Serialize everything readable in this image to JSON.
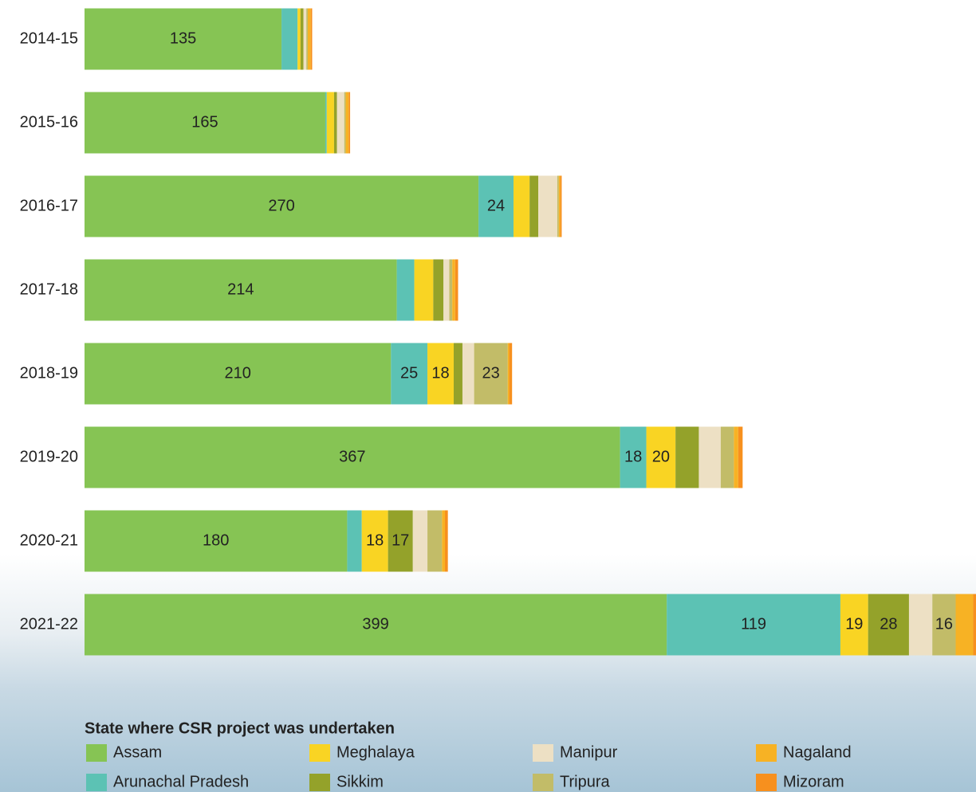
{
  "chart_data": {
    "type": "stacked-bar-horizontal",
    "categories": [
      "2014-15",
      "2015-16",
      "2016-17",
      "2017-18",
      "2018-19",
      "2019-20",
      "2020-21",
      "2021-22"
    ],
    "legend_title": "State where CSR project was undertaken",
    "series": [
      {
        "name": "Assam",
        "color": "#86c454",
        "values": [
          135,
          165,
          270,
          214,
          210,
          367,
          180,
          399
        ],
        "value_labels": [
          "135",
          "165",
          "270",
          "214",
          "210",
          "367",
          "180",
          "399"
        ]
      },
      {
        "name": "Arunachal Pradesh",
        "color": "#5cc2b4",
        "values": [
          11,
          1,
          24,
          12,
          25,
          18,
          10,
          119
        ],
        "value_labels": [
          null,
          null,
          "24",
          null,
          "25",
          "18",
          null,
          "119"
        ]
      },
      {
        "name": "Meghalaya",
        "color": "#f9d423",
        "values": [
          2,
          5,
          11,
          13,
          18,
          20,
          18,
          19
        ],
        "value_labels": [
          null,
          null,
          null,
          null,
          "18",
          "20",
          "18",
          "19"
        ]
      },
      {
        "name": "Sikkim",
        "color": "#94a22a",
        "values": [
          2,
          2,
          6,
          7,
          6,
          16,
          17,
          28
        ],
        "value_labels": [
          null,
          null,
          null,
          null,
          null,
          null,
          "17",
          "28"
        ]
      },
      {
        "name": "Manipur",
        "color": "#ede0c4",
        "values": [
          2,
          5,
          13,
          4,
          8,
          15,
          10,
          16
        ],
        "value_labels": [
          null,
          null,
          null,
          null,
          null,
          null,
          null,
          null
        ]
      },
      {
        "name": "Tripura",
        "color": "#c2bc68",
        "values": [
          1,
          1,
          1,
          2,
          23,
          9,
          10,
          16
        ],
        "value_labels": [
          null,
          null,
          null,
          null,
          "23",
          null,
          null,
          "16"
        ]
      },
      {
        "name": "Nagaland",
        "color": "#f7b224",
        "values": [
          2,
          2,
          1,
          2,
          1,
          3,
          2,
          12
        ],
        "value_labels": [
          null,
          null,
          null,
          null,
          null,
          null,
          null,
          null
        ]
      },
      {
        "name": "Mizoram",
        "color": "#f7901e",
        "values": [
          1,
          1,
          1,
          2,
          2,
          3,
          2,
          2
        ],
        "value_labels": [
          null,
          null,
          null,
          null,
          null,
          null,
          null,
          null
        ]
      }
    ]
  }
}
